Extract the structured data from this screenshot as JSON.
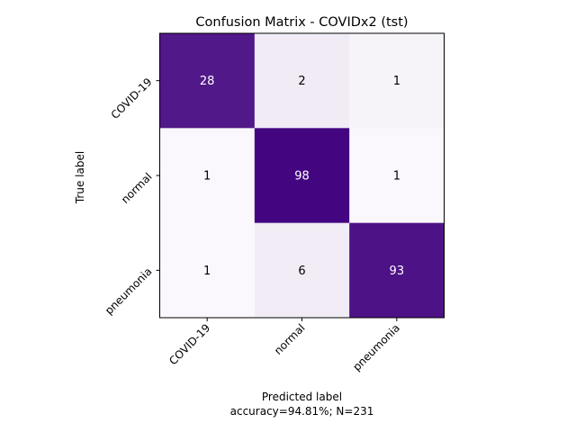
{
  "chart_data": {
    "type": "heatmap",
    "title": "Confusion Matrix - COVIDx2 (tst)",
    "xlabel": "Predicted label",
    "ylabel": "True label",
    "footnote": "accuracy=94.81%; N=231",
    "x_categories": [
      "COVID-19",
      "normal",
      "pneumonia"
    ],
    "y_categories": [
      "COVID-19",
      "normal",
      "pneumonia"
    ],
    "values": [
      [
        28,
        2,
        1
      ],
      [
        1,
        98,
        1
      ],
      [
        1,
        6,
        93
      ]
    ],
    "row_normalized": [
      [
        0.9032,
        0.0645,
        0.0323
      ],
      [
        0.01,
        0.98,
        0.01
      ],
      [
        0.01,
        0.06,
        0.93
      ]
    ],
    "colormap": "Purples",
    "color_min": "#fcfbfd",
    "color_max": "#3f007d",
    "text_color_dark": "#000000",
    "text_color_light": "#ffffff"
  }
}
